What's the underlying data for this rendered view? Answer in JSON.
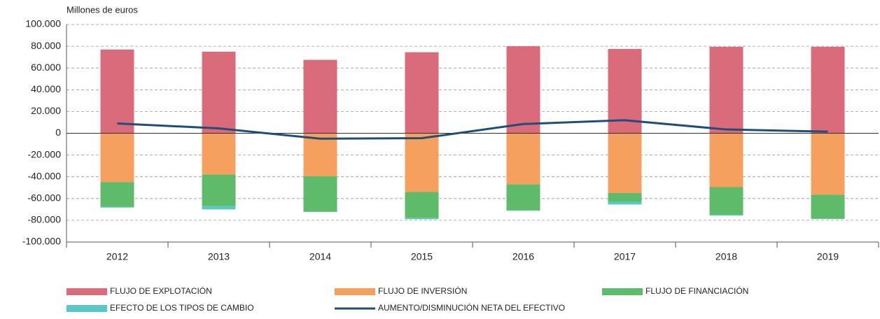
{
  "chart_data": {
    "type": "bar",
    "stacked": true,
    "ylabel": "Millones de euros",
    "categories": [
      "2012",
      "2013",
      "2014",
      "2015",
      "2016",
      "2017",
      "2018",
      "2019"
    ],
    "series": [
      {
        "name": "FLUJO DE EXPLOTACIÓN",
        "color": "#d96b7b",
        "values": [
          77000,
          75000,
          67500,
          74500,
          80000,
          77500,
          79500,
          79500
        ]
      },
      {
        "name": "FLUJO DE INVERSIÓN",
        "color": "#f5a05f",
        "values": [
          -45000,
          -38000,
          -39500,
          -54000,
          -47000,
          -55000,
          -49500,
          -56500
        ]
      },
      {
        "name": "FLUJO DE FINANCIACIÓN",
        "color": "#5dbb6a",
        "values": [
          -22500,
          -29000,
          -32500,
          -24000,
          -24000,
          -8000,
          -25500,
          -22000
        ]
      },
      {
        "name": "EFECTO DE LOS TIPOS DE CAMBIO",
        "color": "#5bc8c8",
        "values": [
          -800,
          -3000,
          -300,
          -1000,
          -200,
          -2500,
          -700,
          -300
        ]
      },
      {
        "name": "AUMENTO/DISMINUCIÓN NETA DEL EFECTIVO",
        "color": "#1f4e79",
        "type": "line",
        "values": [
          9000,
          4500,
          -5000,
          -4500,
          8500,
          12000,
          3500,
          1500
        ]
      }
    ],
    "ylim": [
      -100000,
      100000
    ],
    "yticks": [
      {
        "value": -100000,
        "label": "-100.000"
      },
      {
        "value": -80000,
        "label": "-80.000"
      },
      {
        "value": -60000,
        "label": "-60.000"
      },
      {
        "value": -40000,
        "label": "-40.000"
      },
      {
        "value": -20000,
        "label": "-20.000"
      },
      0,
      {
        "value": 20000,
        "label": "20.000"
      },
      {
        "value": 40000,
        "label": "40.000"
      },
      {
        "value": 60000,
        "label": "60.000"
      },
      {
        "value": 80000,
        "label": "80.000"
      },
      {
        "value": 100000,
        "label": "100.000"
      }
    ],
    "grid": true,
    "legend": "bottom"
  }
}
